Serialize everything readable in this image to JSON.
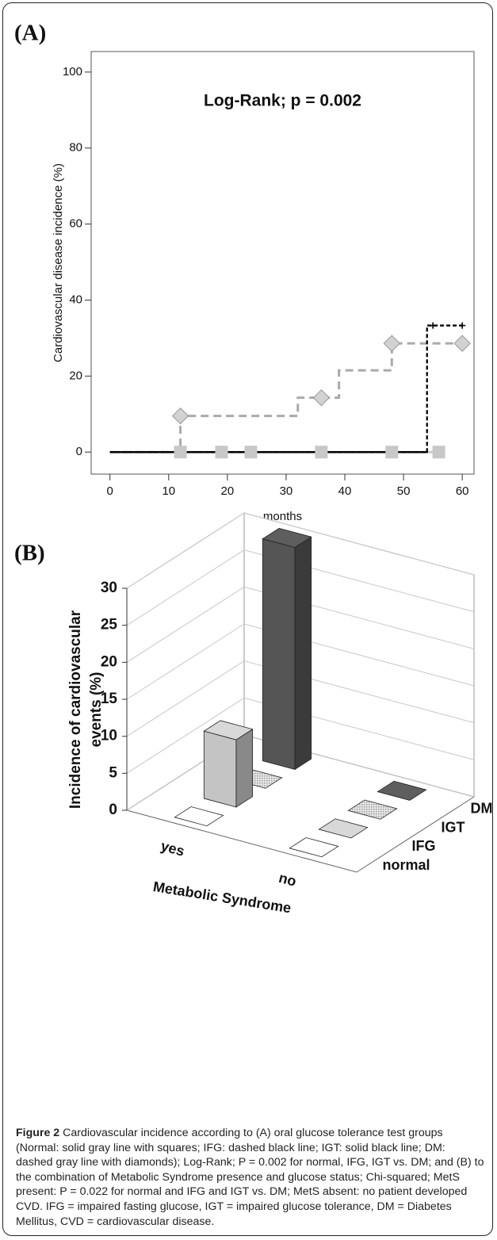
{
  "chart_data": [
    {
      "type": "line",
      "panel": "(A)",
      "annotation": "Log-Rank; p = 0.002",
      "x_label": "months",
      "y_label": "Cardiovascular disease incidence (%)",
      "xlim": [
        -3.2,
        62
      ],
      "ylim": [
        -5.8,
        105.4
      ],
      "xticks": [
        0,
        10,
        20,
        30,
        40,
        50,
        60
      ],
      "yticks": [
        0,
        20,
        40,
        60,
        80,
        100
      ],
      "step": true,
      "series": [
        {
          "color": "#aaaaaa",
          "line": "dashed",
          "x": [
            0,
            12,
            32,
            39,
            48,
            60
          ],
          "values": [
            0,
            9.5,
            14.3,
            21.5,
            28.6,
            28.6
          ],
          "marker": "diamond",
          "marker_x": [
            12,
            36,
            48,
            60
          ],
          "marker_values": [
            9.5,
            14.3,
            28.6,
            28.6
          ]
        },
        {
          "color": "#c8c8c8",
          "line": "solid",
          "x": [
            0,
            56
          ],
          "values": [
            0,
            0
          ],
          "marker": "square",
          "marker_x": [
            12,
            19,
            24,
            36,
            48,
            56
          ],
          "marker_values": [
            0,
            0,
            0,
            0,
            0,
            0
          ]
        },
        {
          "color": "#000000",
          "line": "solid",
          "x": [
            0,
            54
          ],
          "values": [
            0,
            0
          ]
        },
        {
          "color": "#000000",
          "line": "dashed",
          "x": [
            0,
            54,
            60
          ],
          "values": [
            0,
            33.3,
            33.3
          ],
          "marker": "plus",
          "marker_x": [
            55,
            60
          ],
          "marker_values": [
            33.3,
            33.3
          ]
        }
      ]
    },
    {
      "type": "bar3d",
      "panel": "(B)",
      "y_label": [
        "Incidence of cardiovascular",
        "events (%)"
      ],
      "x_label": "Metabolic Syndrome",
      "categories": [
        "yes",
        "no"
      ],
      "ylim": [
        0,
        30
      ],
      "yticks": [
        0,
        5,
        10,
        15,
        20,
        25,
        30
      ],
      "series": [
        {
          "name": "normal",
          "color": "#ffffff",
          "values": [
            0,
            0
          ]
        },
        {
          "name": "IFG",
          "color": "#c4c4c4",
          "values": [
            9.1,
            0
          ]
        },
        {
          "name": "IGT",
          "color": "#9a9a9a",
          "pattern": "dots",
          "values": [
            0,
            0
          ]
        },
        {
          "name": "DM",
          "color": "#555555",
          "values": [
            30,
            0
          ]
        }
      ]
    }
  ],
  "caption": {
    "label": "Figure 2",
    "text": "Cardiovascular incidence according to (A) oral glucose tolerance test groups (Normal: solid gray line with squares; IFG: dashed black line; IGT: solid black line; DM: dashed gray line with diamonds); Log-Rank; P = 0.002 for normal, IFG, IGT vs. DM; and (B) to the combination of Metabolic Syndrome presence and glucose status; Chi-squared; MetS present: P = 0.022 for normal and IFG and IGT vs. DM; MetS absent: no patient developed CVD. IFG = impaired fasting glucose, IGT = impaired glucose tolerance, DM = Diabetes Mellitus, CVD = cardiovascular disease."
  }
}
